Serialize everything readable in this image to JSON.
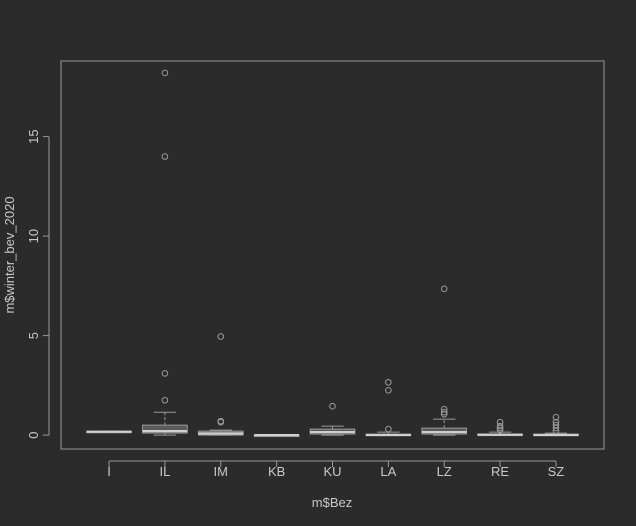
{
  "chart_data": {
    "type": "boxplot",
    "xlabel": "m$Bez",
    "ylabel": "m$winter_bev_2020",
    "ylim": [
      -0.7,
      18.8
    ],
    "yticks": [
      0,
      5,
      10,
      15
    ],
    "categories": [
      "I",
      "IL",
      "IM",
      "KB",
      "KU",
      "LA",
      "LZ",
      "RE",
      "SZ"
    ],
    "boxes": [
      {
        "name": "I",
        "whisker_low": 0.15,
        "q1": 0.15,
        "median": 0.17,
        "q3": 0.19,
        "whisker_high": 0.19,
        "outliers": []
      },
      {
        "name": "IL",
        "whisker_low": 0.0,
        "q1": 0.1,
        "median": 0.2,
        "q3": 0.5,
        "whisker_high": 1.15,
        "outliers": [
          1.75,
          3.1,
          14.0,
          18.2
        ]
      },
      {
        "name": "IM",
        "whisker_low": 0.0,
        "q1": 0.0,
        "median": 0.08,
        "q3": 0.2,
        "whisker_high": 0.25,
        "outliers": [
          0.65,
          0.7,
          4.95
        ]
      },
      {
        "name": "KB",
        "whisker_low": 0.0,
        "q1": 0.0,
        "median": 0.0,
        "q3": 0.0,
        "whisker_high": 0.0,
        "outliers": []
      },
      {
        "name": "KU",
        "whisker_low": 0.0,
        "q1": 0.05,
        "median": 0.15,
        "q3": 0.3,
        "whisker_high": 0.45,
        "outliers": [
          1.45
        ]
      },
      {
        "name": "LA",
        "whisker_low": 0.0,
        "q1": 0.0,
        "median": 0.0,
        "q3": 0.05,
        "whisker_high": 0.15,
        "outliers": [
          0.3,
          2.25,
          2.65
        ]
      },
      {
        "name": "LZ",
        "whisker_low": 0.0,
        "q1": 0.05,
        "median": 0.15,
        "q3": 0.35,
        "whisker_high": 0.8,
        "outliers": [
          1.05,
          1.15,
          1.3,
          7.35
        ]
      },
      {
        "name": "RE",
        "whisker_low": 0.0,
        "q1": 0.0,
        "median": 0.02,
        "q3": 0.05,
        "whisker_high": 0.15,
        "outliers": [
          0.25,
          0.35,
          0.45,
          0.65
        ]
      },
      {
        "name": "SZ",
        "whisker_low": 0.0,
        "q1": 0.0,
        "median": 0.0,
        "q3": 0.05,
        "whisker_high": 0.1,
        "outliers": [
          0.2,
          0.35,
          0.5,
          0.65,
          0.9
        ]
      }
    ],
    "colors": {
      "background": "#2b2b2b",
      "foreground": "#c8c8c8",
      "box_fill": "#5a5a5a",
      "stroke": "#9a9a9a"
    }
  }
}
